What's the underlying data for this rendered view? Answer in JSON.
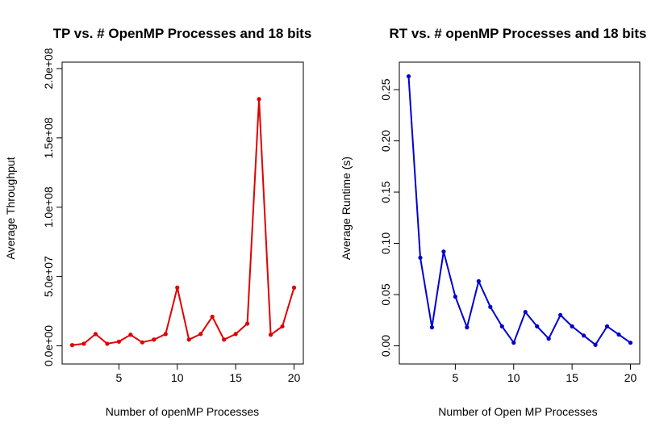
{
  "chart_data": [
    {
      "type": "line",
      "title": "TP vs. # OpenMP Processes and 18 bits",
      "xlabel": "Number of openMP Processes",
      "ylabel": "Average Throughput",
      "xlim": [
        1,
        20
      ],
      "ylim": [
        0,
        200000000
      ],
      "x_ticks": [
        5,
        10,
        15,
        20
      ],
      "x_tick_labels": [
        "5",
        "10",
        "15",
        "20"
      ],
      "y_ticks": [
        0,
        50000000,
        100000000,
        150000000,
        200000000
      ],
      "y_tick_labels": [
        "0.0e+00",
        "5.0e+07",
        "1.0e+08",
        "1.5e+08",
        "2.0e+08"
      ],
      "color": "#e00000",
      "grid": false,
      "x": [
        1,
        2,
        3,
        4,
        5,
        6,
        7,
        8,
        9,
        10,
        11,
        12,
        13,
        14,
        15,
        16,
        17,
        18,
        19,
        20
      ],
      "values": [
        500000,
        1500000,
        8500000,
        1500000,
        3000000,
        8000000,
        2500000,
        4500000,
        8500000,
        42000000,
        4500000,
        8500000,
        21000000,
        4500000,
        8500000,
        16000000,
        178000000,
        8000000,
        14000000,
        42000000
      ]
    },
    {
      "type": "line",
      "title": "RT vs. # openMP Processes and 18 bits",
      "xlabel": "Number of Open MP Processes",
      "ylabel": "Average Runtime (s)",
      "xlim": [
        1,
        20
      ],
      "ylim": [
        0,
        0.265
      ],
      "x_ticks": [
        5,
        10,
        15,
        20
      ],
      "x_tick_labels": [
        "5",
        "10",
        "15",
        "20"
      ],
      "y_ticks": [
        0,
        0.05,
        0.1,
        0.15,
        0.2,
        0.25
      ],
      "y_tick_labels": [
        "0.00",
        "0.05",
        "0.10",
        "0.15",
        "0.20",
        "0.25"
      ],
      "color": "#0000d0",
      "grid": false,
      "x": [
        1,
        2,
        3,
        4,
        5,
        6,
        7,
        8,
        9,
        10,
        11,
        12,
        13,
        14,
        15,
        16,
        17,
        18,
        19,
        20
      ],
      "values": [
        0.263,
        0.086,
        0.018,
        0.092,
        0.048,
        0.018,
        0.063,
        0.038,
        0.019,
        0.003,
        0.033,
        0.019,
        0.007,
        0.03,
        0.019,
        0.01,
        0.001,
        0.019,
        0.011,
        0.003
      ]
    }
  ]
}
